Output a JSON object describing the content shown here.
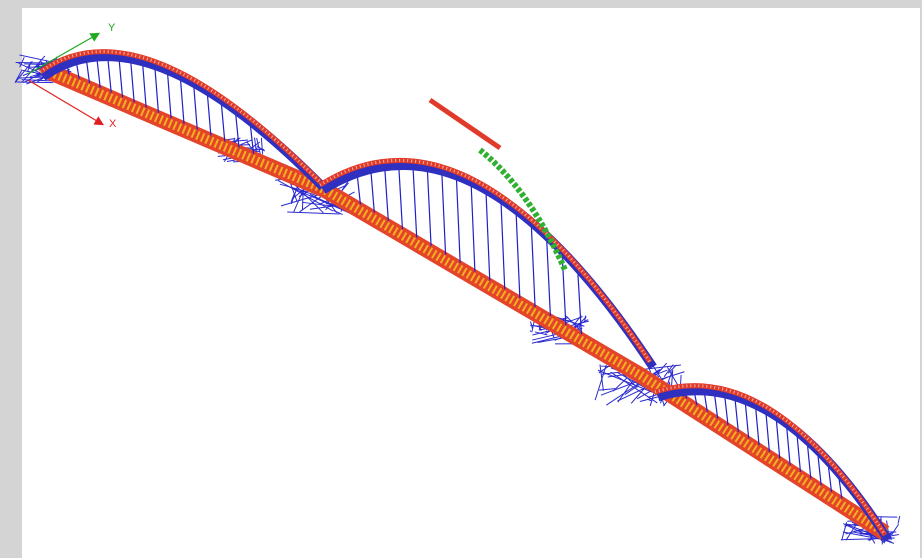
{
  "axes": {
    "x_label": "X",
    "y_label": "Y"
  }
}
